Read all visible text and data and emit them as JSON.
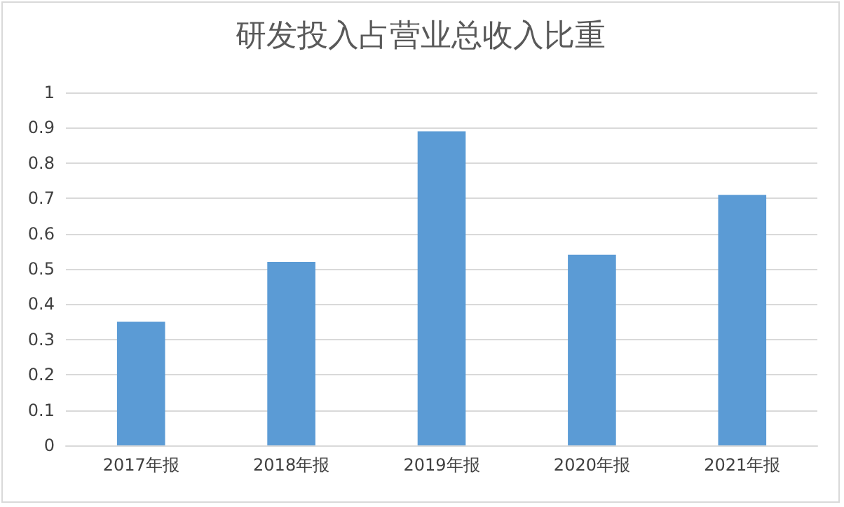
{
  "chart_data": {
    "type": "bar",
    "title": "研发投入占营业总收入比重",
    "categories": [
      "2017年报",
      "2018年报",
      "2019年报",
      "2020年报",
      "2021年报"
    ],
    "values": [
      0.35,
      0.52,
      0.89,
      0.54,
      0.71
    ],
    "color": "#5b9bd5",
    "ylim": [
      0,
      1
    ],
    "yticks": [
      0,
      0.1,
      0.2,
      0.3,
      0.4,
      0.5,
      0.6,
      0.7,
      0.8,
      0.9,
      1
    ],
    "grid": "y"
  }
}
